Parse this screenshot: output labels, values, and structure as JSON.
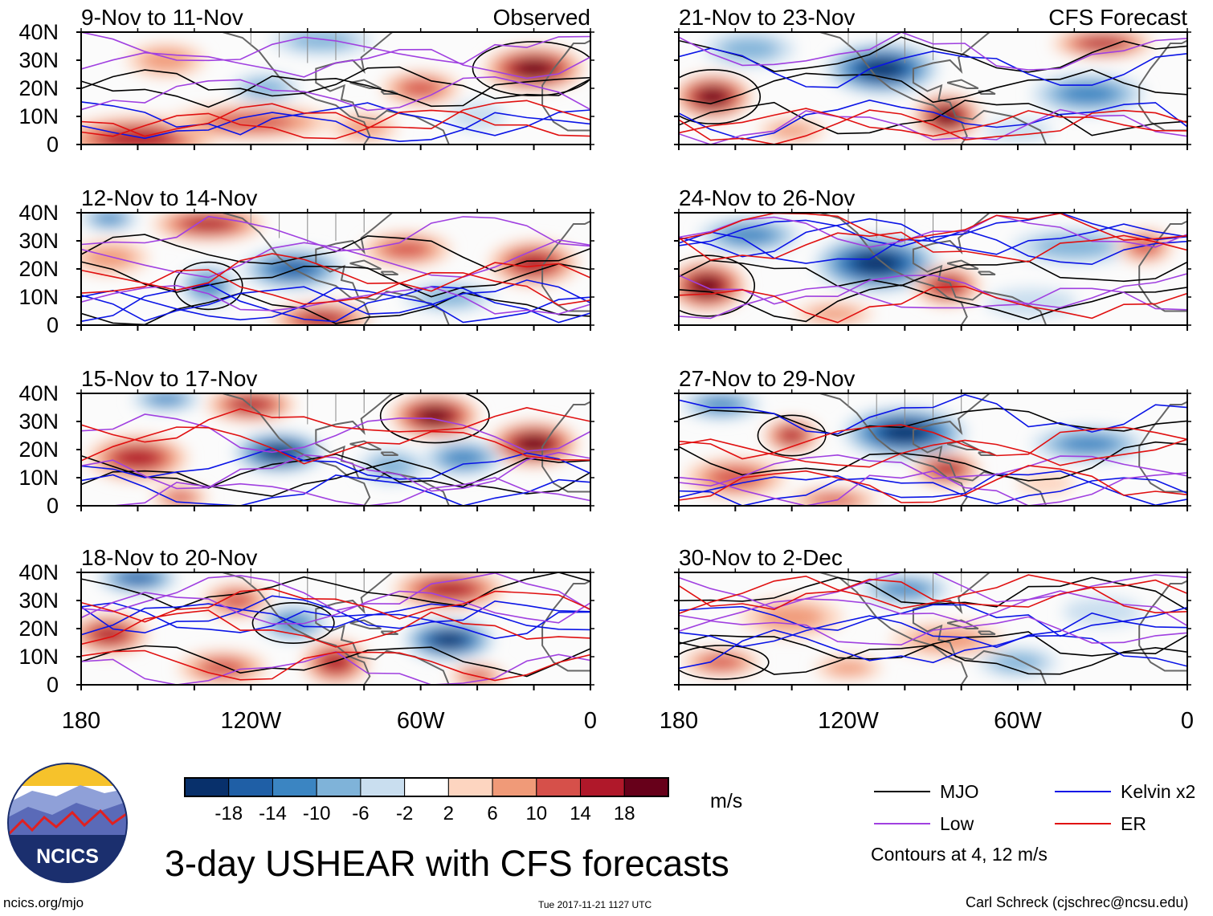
{
  "chart_data": {
    "type": "heatmap",
    "title": "3-day USHEAR with CFS forecasts",
    "variable": "USHEAR",
    "units": "m/s",
    "xlim": [
      -180,
      0
    ],
    "ylim": [
      0,
      40
    ],
    "x_ticks": [
      {
        "value": -180,
        "label": "180"
      },
      {
        "value": -120,
        "label": "120W"
      },
      {
        "value": -60,
        "label": "60W"
      },
      {
        "value": 0,
        "label": "0"
      }
    ],
    "y_ticks": [
      {
        "value": 40,
        "label": "40N"
      },
      {
        "value": 30,
        "label": "30N"
      },
      {
        "value": 20,
        "label": "20N"
      },
      {
        "value": 10,
        "label": "10N"
      },
      {
        "value": 0,
        "label": "0"
      }
    ],
    "source_labels": {
      "left": "Observed",
      "right": "CFS Forecast"
    },
    "panels": [
      {
        "period": "9-Nov to 11-Nov",
        "source": "Observed",
        "blobs": [
          {
            "lon": -160,
            "lat": 2,
            "rx": 28,
            "ry": 8,
            "v": 16
          },
          {
            "lon": -20,
            "lat": 27,
            "rx": 18,
            "ry": 8,
            "v": 18
          },
          {
            "lon": -120,
            "lat": 8,
            "rx": 30,
            "ry": 6,
            "v": 12
          },
          {
            "lon": -60,
            "lat": 20,
            "rx": 14,
            "ry": 6,
            "v": 10
          },
          {
            "lon": -115,
            "lat": 20,
            "rx": 12,
            "ry": 5,
            "v": -8
          },
          {
            "lon": -95,
            "lat": 37,
            "rx": 18,
            "ry": 5,
            "v": -6
          },
          {
            "lon": -150,
            "lat": 30,
            "rx": 14,
            "ry": 6,
            "v": 8
          },
          {
            "lon": -80,
            "lat": 6,
            "rx": 12,
            "ry": 5,
            "v": 8
          },
          {
            "lon": -40,
            "lat": 10,
            "rx": 10,
            "ry": 5,
            "v": -4
          }
        ]
      },
      {
        "period": "12-Nov to 14-Nov",
        "source": "Observed",
        "blobs": [
          {
            "lon": -105,
            "lat": 20,
            "rx": 18,
            "ry": 7,
            "v": -14
          },
          {
            "lon": -135,
            "lat": 14,
            "rx": 10,
            "ry": 7,
            "v": -10
          },
          {
            "lon": -135,
            "lat": 36,
            "rx": 20,
            "ry": 6,
            "v": 14
          },
          {
            "lon": -20,
            "lat": 22,
            "rx": 16,
            "ry": 8,
            "v": 16
          },
          {
            "lon": -65,
            "lat": 27,
            "rx": 16,
            "ry": 6,
            "v": 12
          },
          {
            "lon": -95,
            "lat": 2,
            "rx": 18,
            "ry": 6,
            "v": 14
          },
          {
            "lon": -170,
            "lat": 24,
            "rx": 14,
            "ry": 6,
            "v": 8
          },
          {
            "lon": -170,
            "lat": 38,
            "rx": 10,
            "ry": 4,
            "v": -12
          },
          {
            "lon": -50,
            "lat": 10,
            "rx": 16,
            "ry": 5,
            "v": -6
          }
        ]
      },
      {
        "period": "15-Nov to 17-Nov",
        "source": "Observed",
        "blobs": [
          {
            "lon": -110,
            "lat": 19,
            "rx": 16,
            "ry": 7,
            "v": -18
          },
          {
            "lon": -55,
            "lat": 32,
            "rx": 16,
            "ry": 8,
            "v": 18
          },
          {
            "lon": -20,
            "lat": 22,
            "rx": 16,
            "ry": 8,
            "v": 18
          },
          {
            "lon": -160,
            "lat": 17,
            "rx": 18,
            "ry": 8,
            "v": 14
          },
          {
            "lon": -120,
            "lat": 36,
            "rx": 16,
            "ry": 6,
            "v": 14
          },
          {
            "lon": -150,
            "lat": 38,
            "rx": 12,
            "ry": 4,
            "v": -10
          },
          {
            "lon": -45,
            "lat": 17,
            "rx": 14,
            "ry": 6,
            "v": -10
          },
          {
            "lon": -70,
            "lat": 14,
            "rx": 12,
            "ry": 6,
            "v": -8
          },
          {
            "lon": -145,
            "lat": 3,
            "rx": 10,
            "ry": 4,
            "v": 12
          }
        ]
      },
      {
        "period": "18-Nov to 20-Nov",
        "source": "Observed",
        "blobs": [
          {
            "lon": -50,
            "lat": 16,
            "rx": 16,
            "ry": 7,
            "v": -18
          },
          {
            "lon": -105,
            "lat": 22,
            "rx": 12,
            "ry": 6,
            "v": -12
          },
          {
            "lon": -160,
            "lat": 38,
            "rx": 14,
            "ry": 5,
            "v": -16
          },
          {
            "lon": -170,
            "lat": 18,
            "rx": 14,
            "ry": 7,
            "v": 14
          },
          {
            "lon": -50,
            "lat": 34,
            "rx": 20,
            "ry": 7,
            "v": 16
          },
          {
            "lon": -90,
            "lat": 8,
            "rx": 12,
            "ry": 8,
            "v": 16
          },
          {
            "lon": -130,
            "lat": 6,
            "rx": 16,
            "ry": 6,
            "v": 12
          },
          {
            "lon": -125,
            "lat": 30,
            "rx": 12,
            "ry": 6,
            "v": 10
          },
          {
            "lon": -40,
            "lat": 3,
            "rx": 10,
            "ry": 4,
            "v": 10
          }
        ]
      },
      {
        "period": "21-Nov to 23-Nov",
        "source": "CFS Forecast",
        "blobs": [
          {
            "lon": -108,
            "lat": 27,
            "rx": 20,
            "ry": 9,
            "v": -18
          },
          {
            "lon": -168,
            "lat": 17,
            "rx": 14,
            "ry": 8,
            "v": 18
          },
          {
            "lon": -85,
            "lat": 10,
            "rx": 12,
            "ry": 8,
            "v": 18
          },
          {
            "lon": -30,
            "lat": 36,
            "rx": 18,
            "ry": 5,
            "v": 14
          },
          {
            "lon": -35,
            "lat": 18,
            "rx": 20,
            "ry": 7,
            "v": -10
          },
          {
            "lon": -155,
            "lat": 34,
            "rx": 16,
            "ry": 6,
            "v": -6
          },
          {
            "lon": -140,
            "lat": 5,
            "rx": 12,
            "ry": 4,
            "v": 6
          },
          {
            "lon": -60,
            "lat": 5,
            "rx": 12,
            "ry": 4,
            "v": -4
          }
        ]
      },
      {
        "period": "24-Nov to 26-Nov",
        "source": "CFS Forecast",
        "blobs": [
          {
            "lon": -110,
            "lat": 22,
            "rx": 22,
            "ry": 10,
            "v": -18
          },
          {
            "lon": -170,
            "lat": 14,
            "rx": 14,
            "ry": 9,
            "v": 18
          },
          {
            "lon": -85,
            "lat": 14,
            "rx": 12,
            "ry": 7,
            "v": 16
          },
          {
            "lon": -155,
            "lat": 32,
            "rx": 18,
            "ry": 6,
            "v": -10
          },
          {
            "lon": -40,
            "lat": 28,
            "rx": 22,
            "ry": 6,
            "v": -8
          },
          {
            "lon": -15,
            "lat": 28,
            "rx": 10,
            "ry": 6,
            "v": 10
          },
          {
            "lon": -55,
            "lat": 8,
            "rx": 16,
            "ry": 5,
            "v": -4
          },
          {
            "lon": -125,
            "lat": 4,
            "rx": 14,
            "ry": 4,
            "v": 6
          }
        ]
      },
      {
        "period": "27-Nov to 29-Nov",
        "source": "CFS Forecast",
        "blobs": [
          {
            "lon": -100,
            "lat": 26,
            "rx": 22,
            "ry": 9,
            "v": -18
          },
          {
            "lon": -140,
            "lat": 25,
            "rx": 10,
            "ry": 6,
            "v": 16
          },
          {
            "lon": -85,
            "lat": 13,
            "rx": 12,
            "ry": 6,
            "v": 16
          },
          {
            "lon": -160,
            "lat": 10,
            "rx": 18,
            "ry": 7,
            "v": 12
          },
          {
            "lon": -35,
            "lat": 22,
            "rx": 20,
            "ry": 6,
            "v": -12
          },
          {
            "lon": -165,
            "lat": 36,
            "rx": 14,
            "ry": 5,
            "v": -10
          },
          {
            "lon": -125,
            "lat": 2,
            "rx": 16,
            "ry": 4,
            "v": 10
          },
          {
            "lon": -50,
            "lat": 8,
            "rx": 10,
            "ry": 4,
            "v": 4
          }
        ]
      },
      {
        "period": "30-Nov to 2-Dec",
        "source": "CFS Forecast",
        "blobs": [
          {
            "lon": -140,
            "lat": 24,
            "rx": 18,
            "ry": 7,
            "v": 8
          },
          {
            "lon": -165,
            "lat": 8,
            "rx": 14,
            "ry": 5,
            "v": 10
          },
          {
            "lon": -85,
            "lat": 16,
            "rx": 20,
            "ry": 6,
            "v": 8
          },
          {
            "lon": -100,
            "lat": 34,
            "rx": 16,
            "ry": 5,
            "v": -10
          },
          {
            "lon": -60,
            "lat": 8,
            "rx": 14,
            "ry": 5,
            "v": -6
          },
          {
            "lon": -30,
            "lat": 26,
            "rx": 14,
            "ry": 5,
            "v": -4
          },
          {
            "lon": -120,
            "lat": 6,
            "rx": 12,
            "ry": 4,
            "v": 6
          }
        ]
      }
    ],
    "colorbar": {
      "tick_labels": [
        "-18",
        "-14",
        "-10",
        "-6",
        "-2",
        "2",
        "6",
        "10",
        "14",
        "18"
      ],
      "colors": [
        "#08306b",
        "#1f5fa6",
        "#3b85c2",
        "#7fb3d9",
        "#c9deef",
        "#ffffff",
        "#fdd5c0",
        "#f09a78",
        "#d6504a",
        "#b0182a",
        "#67001a"
      ],
      "units": "m/s"
    },
    "legend": {
      "entries": [
        {
          "label": "MJO",
          "color": "#000000"
        },
        {
          "label": "Kelvin x2",
          "color": "#0a14e6"
        },
        {
          "label": "Low",
          "color": "#a040e0"
        },
        {
          "label": "ER",
          "color": "#e01010"
        }
      ],
      "note": "Contours at 4, 12 m/s"
    }
  },
  "footer": {
    "logo_text": "NCICS",
    "website": "ncics.org/mjo",
    "timestamp": "Tue 2017-11-21 1127 UTC",
    "credit": "Carl Schreck (cjschrec@ncsu.edu)"
  }
}
